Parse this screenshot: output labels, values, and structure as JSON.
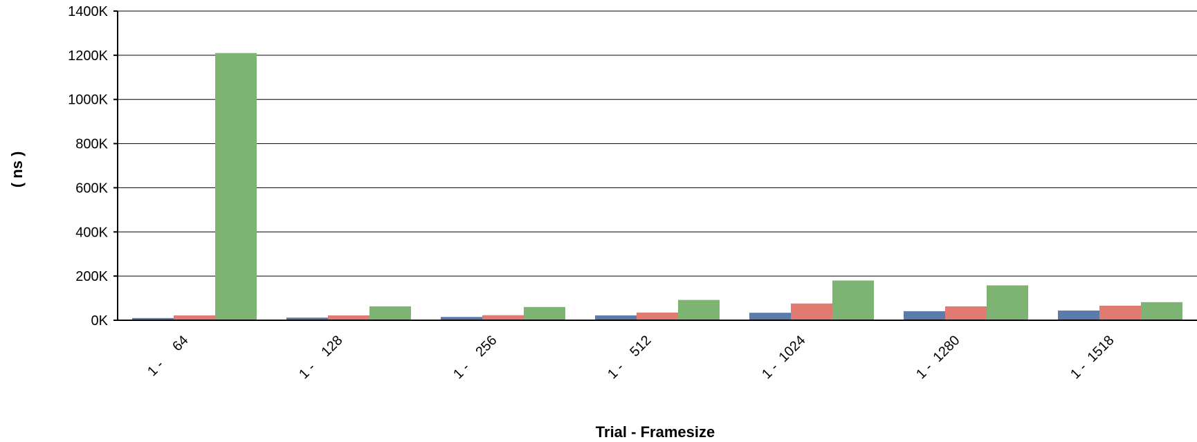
{
  "chart_data": {
    "type": "bar",
    "title": "",
    "xlabel": "Trial - Framesize",
    "ylabel": "( ns )",
    "categories": [
      "1 -     64",
      "1 -    128",
      "1 -    256",
      "1 -    512",
      "1 -  1024",
      "1 -  1280",
      "1 -  1518"
    ],
    "series": [
      {
        "color": "#5b7cab",
        "values": [
          10000,
          12000,
          15000,
          22000,
          34000,
          41000,
          44000
        ]
      },
      {
        "color": "#e07b72",
        "values": [
          22000,
          22000,
          23000,
          35000,
          76000,
          63000,
          66000
        ]
      },
      {
        "color": "#7db474",
        "values": [
          1210000,
          63000,
          60000,
          92000,
          180000,
          158000,
          82000
        ]
      }
    ],
    "ylim": [
      0,
      1400000
    ],
    "yticks": [
      0,
      200000,
      400000,
      600000,
      800000,
      1000000,
      1200000,
      1400000
    ],
    "ytick_labels": [
      "0K",
      "200K",
      "400K",
      "600K",
      "800K",
      "1000K",
      "1200K",
      "1400K"
    ],
    "grid": true,
    "legend": "none"
  }
}
